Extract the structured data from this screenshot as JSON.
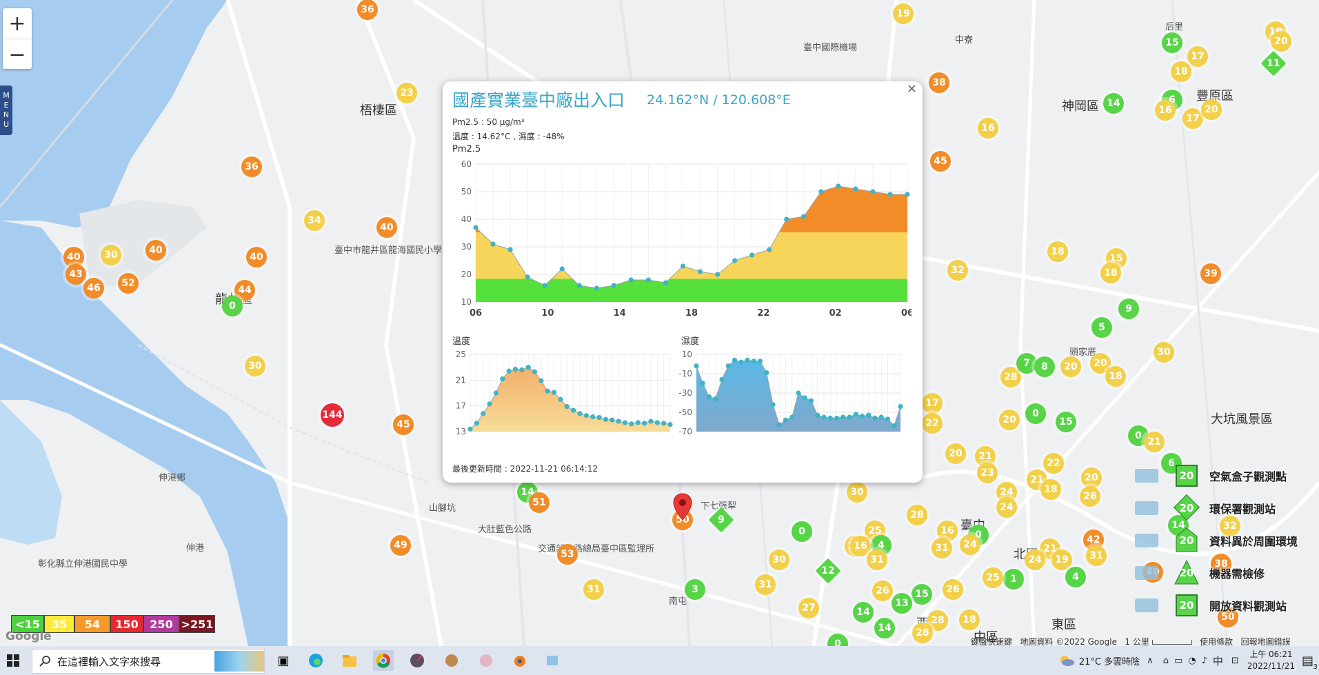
{
  "map_controls": {
    "zoom_in": "+",
    "zoom_out": "−",
    "menu": "MENU"
  },
  "map_labels": [
    {
      "text": "臺中國際機場",
      "x": 1165,
      "y": 58
    },
    {
      "text": "梧棲區",
      "x": 522,
      "y": 146
    },
    {
      "text": "神岡區",
      "x": 1540,
      "y": 140
    },
    {
      "text": "豐原區",
      "x": 1735,
      "y": 125
    },
    {
      "text": "龍井區",
      "x": 312,
      "y": 420
    },
    {
      "text": "臺中市龍井區龍海國民小學",
      "x": 485,
      "y": 352
    },
    {
      "text": "伸港鄉",
      "x": 230,
      "y": 682
    },
    {
      "text": "伸港",
      "x": 270,
      "y": 784
    },
    {
      "text": "下七張犁",
      "x": 1016,
      "y": 723
    },
    {
      "text": "北區",
      "x": 1470,
      "y": 790
    },
    {
      "text": "臺中",
      "x": 1393,
      "y": 748
    },
    {
      "text": "中區",
      "x": 1412,
      "y": 910
    },
    {
      "text": "東區",
      "x": 1525,
      "y": 892
    },
    {
      "text": "西區",
      "x": 1329,
      "y": 890
    },
    {
      "text": "南屯",
      "x": 970,
      "y": 861
    },
    {
      "text": "大肚藍色公路",
      "x": 693,
      "y": 757
    },
    {
      "text": "交通部公路總局臺中區監理所",
      "x": 780,
      "y": 785
    },
    {
      "text": "彰化縣立伸港國民中學",
      "x": 55,
      "y": 807
    },
    {
      "text": "山腳坑",
      "x": 622,
      "y": 726
    },
    {
      "text": "中寮",
      "x": 1385,
      "y": 47
    },
    {
      "text": "后里",
      "x": 1690,
      "y": 28
    },
    {
      "text": "大坑風景區",
      "x": 1756,
      "y": 594
    },
    {
      "text": "頭家厝",
      "x": 1551,
      "y": 500
    }
  ],
  "markers": [
    {
      "v": "36",
      "x": 533,
      "y": 14,
      "c": "#f28c28"
    },
    {
      "v": "19",
      "x": 1310,
      "y": 20,
      "c": "#f3d04a"
    },
    {
      "v": "19",
      "x": 1850,
      "y": 46,
      "c": "#f3d04a"
    },
    {
      "v": "20",
      "x": 1858,
      "y": 60,
      "c": "#f3d04a"
    },
    {
      "v": "15",
      "x": 1700,
      "y": 62,
      "c": "#57d447"
    },
    {
      "v": "17",
      "x": 1737,
      "y": 82,
      "c": "#f3d04a"
    },
    {
      "v": "18",
      "x": 1713,
      "y": 104,
      "c": "#f3d04a"
    },
    {
      "v": "23",
      "x": 590,
      "y": 135,
      "c": "#f3d04a"
    },
    {
      "v": "38",
      "x": 1362,
      "y": 120,
      "c": "#f28c28"
    },
    {
      "v": "14",
      "x": 1615,
      "y": 150,
      "c": "#57d447"
    },
    {
      "v": "6",
      "x": 1700,
      "y": 145,
      "c": "#57d447"
    },
    {
      "v": "16",
      "x": 1690,
      "y": 160,
      "c": "#f3d04a"
    },
    {
      "v": "17",
      "x": 1730,
      "y": 172,
      "c": "#f3d04a"
    },
    {
      "v": "20",
      "x": 1757,
      "y": 159,
      "c": "#f3d04a"
    },
    {
      "v": "16",
      "x": 1433,
      "y": 186,
      "c": "#f3d04a"
    },
    {
      "v": "45",
      "x": 1364,
      "y": 234,
      "c": "#f28c28"
    },
    {
      "v": "36",
      "x": 365,
      "y": 242,
      "c": "#f28c28"
    },
    {
      "v": "34",
      "x": 456,
      "y": 320,
      "c": "#f3d04a"
    },
    {
      "v": "40",
      "x": 561,
      "y": 330,
      "c": "#f28c28"
    },
    {
      "v": "40",
      "x": 107,
      "y": 373,
      "c": "#f28c28"
    },
    {
      "v": "30",
      "x": 161,
      "y": 370,
      "c": "#f3d04a"
    },
    {
      "v": "40",
      "x": 226,
      "y": 363,
      "c": "#f28c28"
    },
    {
      "v": "40",
      "x": 372,
      "y": 373,
      "c": "#f28c28"
    },
    {
      "v": "43",
      "x": 110,
      "y": 398,
      "c": "#f28c28"
    },
    {
      "v": "52",
      "x": 186,
      "y": 411,
      "c": "#f28c28"
    },
    {
      "v": "46",
      "x": 136,
      "y": 418,
      "c": "#f28c28"
    },
    {
      "v": "44",
      "x": 355,
      "y": 421,
      "c": "#f28c28"
    },
    {
      "v": "0",
      "x": 337,
      "y": 444,
      "c": "#57d447"
    },
    {
      "v": "18",
      "x": 1534,
      "y": 365,
      "c": "#f3d04a"
    },
    {
      "v": "32",
      "x": 1389,
      "y": 392,
      "c": "#f3d04a"
    },
    {
      "v": "15",
      "x": 1619,
      "y": 375,
      "c": "#f3d04a"
    },
    {
      "v": "18",
      "x": 1611,
      "y": 396,
      "c": "#f3d04a"
    },
    {
      "v": "39",
      "x": 1756,
      "y": 397,
      "c": "#f28c28"
    },
    {
      "v": "9",
      "x": 1637,
      "y": 448,
      "c": "#57d447"
    },
    {
      "v": "5",
      "x": 1598,
      "y": 475,
      "c": "#57d447"
    },
    {
      "v": "30",
      "x": 1688,
      "y": 511,
      "c": "#f3d04a"
    },
    {
      "v": "30",
      "x": 370,
      "y": 531,
      "c": "#f3d04a"
    },
    {
      "v": "144",
      "x": 482,
      "y": 602,
      "c": "#e52b3a"
    },
    {
      "v": "45",
      "x": 585,
      "y": 616,
      "c": "#f28c28"
    },
    {
      "v": "28",
      "x": 1466,
      "y": 547,
      "c": "#f3d04a"
    },
    {
      "v": "7",
      "x": 1489,
      "y": 527,
      "c": "#57d447"
    },
    {
      "v": "8",
      "x": 1515,
      "y": 532,
      "c": "#57d447"
    },
    {
      "v": "20",
      "x": 1553,
      "y": 532,
      "c": "#f3d04a"
    },
    {
      "v": "20",
      "x": 1596,
      "y": 527,
      "c": "#f3d04a"
    },
    {
      "v": "18",
      "x": 1618,
      "y": 546,
      "c": "#f3d04a"
    },
    {
      "v": "20",
      "x": 1464,
      "y": 609,
      "c": "#f3d04a"
    },
    {
      "v": "0",
      "x": 1502,
      "y": 600,
      "c": "#57d447"
    },
    {
      "v": "15",
      "x": 1546,
      "y": 612,
      "c": "#57d447"
    },
    {
      "v": "0",
      "x": 1651,
      "y": 632,
      "c": "#57d447"
    },
    {
      "v": "21",
      "x": 1674,
      "y": 641,
      "c": "#f3d04a"
    },
    {
      "v": "17",
      "x": 1352,
      "y": 585,
      "c": "#f3d04a"
    },
    {
      "v": "22",
      "x": 1352,
      "y": 614,
      "c": "#f3d04a"
    },
    {
      "v": "20",
      "x": 1386,
      "y": 658,
      "c": "#f3d04a"
    },
    {
      "v": "21",
      "x": 1429,
      "y": 662,
      "c": "#f3d04a"
    },
    {
      "v": "22",
      "x": 1528,
      "y": 672,
      "c": "#f3d04a"
    },
    {
      "v": "23",
      "x": 1432,
      "y": 686,
      "c": "#f3d04a"
    },
    {
      "v": "21",
      "x": 1504,
      "y": 696,
      "c": "#f3d04a"
    },
    {
      "v": "18",
      "x": 1524,
      "y": 710,
      "c": "#f3d04a"
    },
    {
      "v": "20",
      "x": 1583,
      "y": 693,
      "c": "#f3d04a"
    },
    {
      "v": "26",
      "x": 1581,
      "y": 720,
      "c": "#f3d04a"
    },
    {
      "v": "24",
      "x": 1460,
      "y": 714,
      "c": "#f3d04a"
    },
    {
      "v": "24",
      "x": 1460,
      "y": 736,
      "c": "#f3d04a"
    },
    {
      "v": "6",
      "x": 1699,
      "y": 672,
      "c": "#57d447"
    },
    {
      "v": "14",
      "x": 765,
      "y": 714,
      "c": "#57d447"
    },
    {
      "v": "51",
      "x": 782,
      "y": 729,
      "c": "#f28c28"
    },
    {
      "v": "30",
      "x": 1243,
      "y": 714,
      "c": "#f3d04a"
    },
    {
      "v": "28",
      "x": 1330,
      "y": 747,
      "c": "#f3d04a"
    },
    {
      "v": "14",
      "x": 1709,
      "y": 762,
      "c": "#57d447"
    },
    {
      "v": "32",
      "x": 1784,
      "y": 763,
      "c": "#f3d04a"
    },
    {
      "v": "42",
      "x": 1586,
      "y": 783,
      "c": "#f28c28"
    },
    {
      "v": "0",
      "x": 1163,
      "y": 771,
      "c": "#57d447"
    },
    {
      "v": "25",
      "x": 1269,
      "y": 770,
      "c": "#f3d04a"
    },
    {
      "v": "16",
      "x": 1374,
      "y": 770,
      "c": "#f3d04a"
    },
    {
      "v": "0",
      "x": 1419,
      "y": 776,
      "c": "#57d447"
    },
    {
      "v": "24",
      "x": 1407,
      "y": 790,
      "c": "#f3d04a"
    },
    {
      "v": "4",
      "x": 1278,
      "y": 791,
      "c": "#57d447"
    },
    {
      "v": "17",
      "x": 1240,
      "y": 792,
      "c": "#f3d04a"
    },
    {
      "v": "16",
      "x": 1248,
      "y": 792,
      "c": "#f3d04a"
    },
    {
      "v": "31",
      "x": 1366,
      "y": 795,
      "c": "#f3d04a"
    },
    {
      "v": "21",
      "x": 1523,
      "y": 796,
      "c": "#f3d04a"
    },
    {
      "v": "31",
      "x": 1590,
      "y": 806,
      "c": "#f3d04a"
    },
    {
      "v": "19",
      "x": 1540,
      "y": 812,
      "c": "#f3d04a"
    },
    {
      "v": "24",
      "x": 1501,
      "y": 812,
      "c": "#f3d04a"
    },
    {
      "v": "4",
      "x": 1560,
      "y": 837,
      "c": "#57d447"
    },
    {
      "v": "49",
      "x": 581,
      "y": 791,
      "c": "#f28c28"
    },
    {
      "v": "53",
      "x": 823,
      "y": 804,
      "c": "#f28c28"
    },
    {
      "v": "30",
      "x": 1130,
      "y": 812,
      "c": "#f3d04a"
    },
    {
      "v": "31",
      "x": 1272,
      "y": 812,
      "c": "#f3d04a"
    },
    {
      "v": "31",
      "x": 1110,
      "y": 848,
      "c": "#f3d04a"
    },
    {
      "v": "1",
      "x": 1470,
      "y": 840,
      "c": "#57d447"
    },
    {
      "v": "25",
      "x": 1440,
      "y": 838,
      "c": "#f3d04a"
    },
    {
      "v": "38",
      "x": 1771,
      "y": 818,
      "c": "#f28c28"
    },
    {
      "v": "40",
      "x": 1672,
      "y": 830,
      "c": "#f28c28"
    },
    {
      "v": "31",
      "x": 861,
      "y": 855,
      "c": "#f3d04a"
    },
    {
      "v": "3",
      "x": 1008,
      "y": 855,
      "c": "#57d447"
    },
    {
      "v": "26",
      "x": 1280,
      "y": 857,
      "c": "#f3d04a"
    },
    {
      "v": "15",
      "x": 1337,
      "y": 862,
      "c": "#57d447"
    },
    {
      "v": "26",
      "x": 1382,
      "y": 855,
      "c": "#f3d04a"
    },
    {
      "v": "13",
      "x": 1308,
      "y": 875,
      "c": "#57d447"
    },
    {
      "v": "27",
      "x": 1173,
      "y": 882,
      "c": "#f3d04a"
    },
    {
      "v": "14",
      "x": 1252,
      "y": 888,
      "c": "#57d447"
    },
    {
      "v": "28",
      "x": 1360,
      "y": 900,
      "c": "#f3d04a"
    },
    {
      "v": "18",
      "x": 1406,
      "y": 899,
      "c": "#f3d04a"
    },
    {
      "v": "14",
      "x": 1283,
      "y": 911,
      "c": "#57d447"
    },
    {
      "v": "28",
      "x": 1338,
      "y": 918,
      "c": "#f3d04a"
    },
    {
      "v": "50",
      "x": 1781,
      "y": 895,
      "c": "#f28c28"
    },
    {
      "v": "0",
      "x": 1215,
      "y": 934,
      "c": "#57d447"
    },
    {
      "v": "50",
      "x": 990,
      "y": 754,
      "c": "#f28c28"
    }
  ],
  "diamond_markers": [
    {
      "v": "11",
      "x": 1847,
      "y": 92,
      "c": "#57d447"
    },
    {
      "v": "9",
      "x": 1046,
      "y": 754,
      "c": "#57d447"
    },
    {
      "v": "12",
      "x": 1201,
      "y": 828,
      "c": "#57d447"
    }
  ],
  "popup": {
    "close": "×",
    "title": "國產實業臺中廠出入口",
    "coords": "24.162°N / 120.608°E",
    "pm25_line": "Pm2.5 : 50 μg/m³",
    "temp_line": "溫度 : 14.62°C , 濕度 : -48%",
    "pm_label": "Pm2.5",
    "temp_label": "溫度",
    "hum_label": "濕度",
    "updated": "最後更新時間 : 2022-11-21 06:14:12"
  },
  "chart_data": [
    {
      "type": "area",
      "title": "Pm2.5",
      "x_ticks": [
        "06",
        "10",
        "14",
        "18",
        "22",
        "02",
        "06"
      ],
      "ylim": [
        10,
        60
      ],
      "y_ticks": [
        10,
        20,
        30,
        40,
        50,
        60
      ],
      "values": [
        37,
        31,
        29,
        19,
        16,
        22,
        16,
        15,
        16,
        18,
        18,
        17,
        23,
        21,
        20,
        25,
        27,
        29,
        40,
        41,
        50,
        52,
        51,
        50,
        49,
        49
      ],
      "grid": true
    },
    {
      "type": "area",
      "title": "溫度",
      "ylim": [
        13,
        25
      ],
      "y_ticks": [
        13,
        17,
        21,
        25
      ],
      "values": [
        13.4,
        14.3,
        15.8,
        17.3,
        19.0,
        21.2,
        22.4,
        22.7,
        22.6,
        23.0,
        22.3,
        20.9,
        19.3,
        19.1,
        18.0,
        16.9,
        16.3,
        15.8,
        15.5,
        15.3,
        15.2,
        14.9,
        14.8,
        14.6,
        14.4,
        14.2,
        14.4,
        14.3,
        14.6,
        14.4,
        14.3,
        14.1
      ],
      "grid": true
    },
    {
      "type": "area",
      "title": "濕度",
      "ylim": [
        -70,
        10
      ],
      "y_ticks": [
        10,
        -10,
        -30,
        -50,
        -70
      ],
      "values": [
        -2,
        -20,
        -34,
        -36,
        -16,
        -2,
        4,
        2,
        4,
        3,
        3,
        -9,
        -42,
        -63,
        -58,
        -55,
        -30,
        -35,
        -38,
        -53,
        -55,
        -56,
        -56,
        -55,
        -55,
        -52,
        -54,
        -53,
        -56,
        -55,
        -57,
        -64,
        -44
      ],
      "grid": true
    }
  ],
  "legend": {
    "items": [
      {
        "label": "空氣盒子觀測點",
        "value": "20"
      },
      {
        "label": "環保署觀測站",
        "value": "20"
      },
      {
        "label": "資料異於周圍環境",
        "value": "20"
      },
      {
        "label": "機器需檢修",
        "value": "20"
      },
      {
        "label": "開放資料觀測站",
        "value": "20"
      }
    ]
  },
  "pm_scale": [
    {
      "label": "<15",
      "bg": "#4dd23e",
      "fg": "#fff"
    },
    {
      "label": "35",
      "bg": "#fbea3a",
      "fg": "#fff"
    },
    {
      "label": "54",
      "bg": "#f59a2a",
      "fg": "#fff"
    },
    {
      "label": "150",
      "bg": "#e8282f",
      "fg": "#fff"
    },
    {
      "label": "250",
      "bg": "#b03b9c",
      "fg": "#fff"
    },
    {
      "label": ">251",
      "bg": "#7a1721",
      "fg": "#fff"
    }
  ],
  "attribution": {
    "google": "Google",
    "shortcuts": "鍵盤快速鍵",
    "map_data": "地圖資料 ©2022 Google",
    "scale": "1 公里",
    "terms": "使用條款",
    "report": "回報地圖錯誤"
  },
  "taskbar": {
    "search_placeholder": "在這裡輸入文字來搜尋",
    "weather": "21°C 多雲時陰",
    "ime": "中",
    "time": "上午 06:21",
    "date": "2022/11/21",
    "notifications": "3"
  }
}
